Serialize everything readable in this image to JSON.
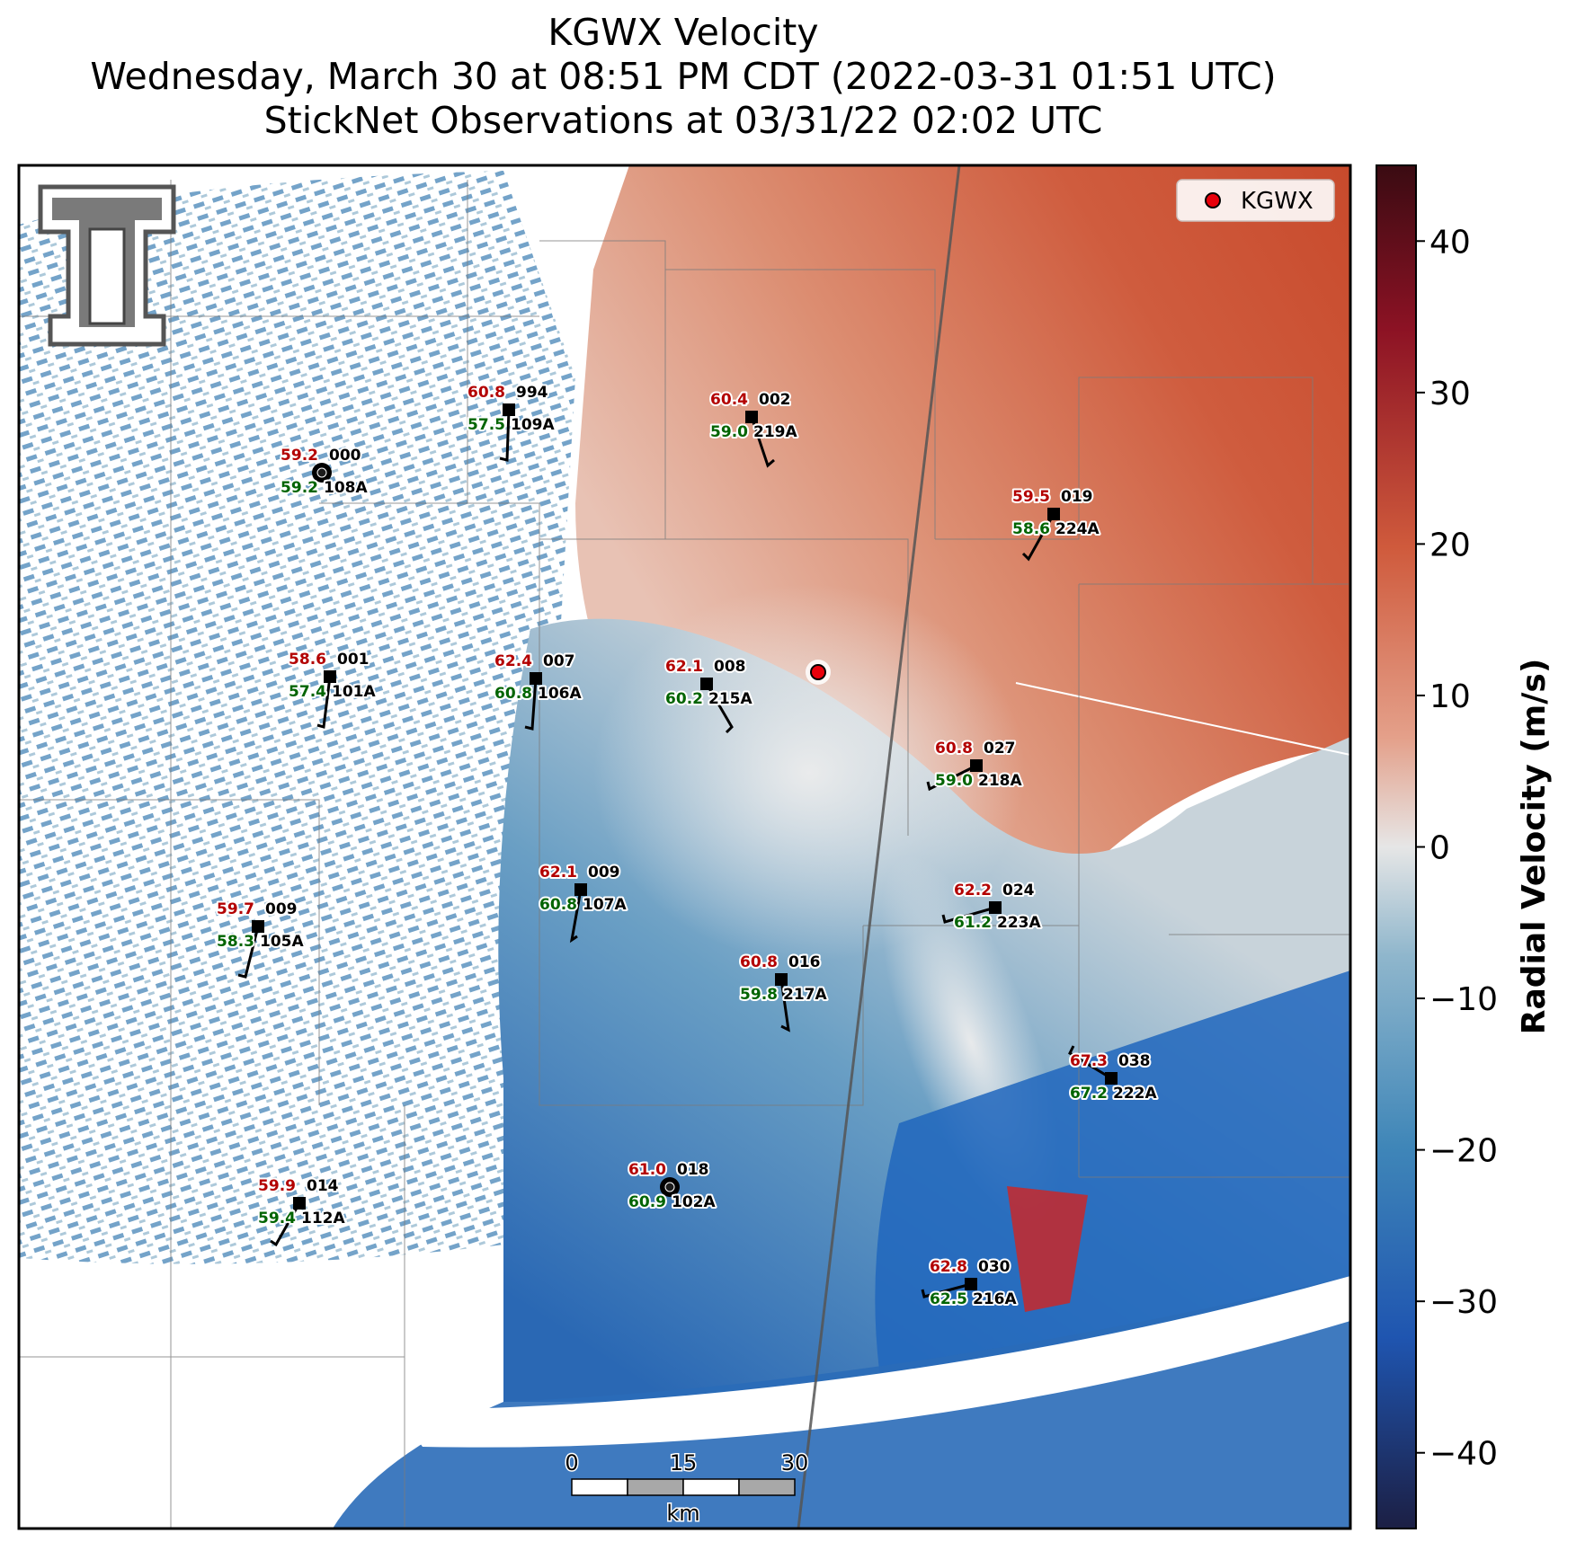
{
  "title": {
    "line1": "KGWX Velocity",
    "line2": "Wednesday, March 30 at 08:51 PM CDT (2022-03-31 01:51 UTC)",
    "line3": "StickNet Observations at 03/31/22 02:02 UTC"
  },
  "legend": {
    "label": "KGWX",
    "marker_color": "#e8000b"
  },
  "colorbar": {
    "label": "Radial Velocity (m/s)",
    "ticks": [
      "40",
      "30",
      "20",
      "10",
      "0",
      "−10",
      "−20",
      "−30",
      "−40"
    ],
    "min": -45,
    "max": 45,
    "colors": [
      "#1c1f44",
      "#2a3f9e",
      "#2f6fbf",
      "#5f9fc2",
      "#e6e6e6",
      "#e4a08a",
      "#cf5a3c",
      "#8c1224",
      "#3a0b12"
    ]
  },
  "scale_bar": {
    "ticks": [
      "0",
      "15",
      "30"
    ],
    "unit": "km"
  },
  "logo": {
    "name": "Texas Tech Double T"
  },
  "stations": [
    {
      "temp": "60.8",
      "id": "994",
      "dew": "57.5",
      "probe": "109A"
    },
    {
      "temp": "60.4",
      "id": "002",
      "dew": "59.0",
      "probe": "219A"
    },
    {
      "temp": "59.2",
      "id": "000",
      "dew": "59.2",
      "probe": "108A"
    },
    {
      "temp": "59.5",
      "id": "019",
      "dew": "58.6",
      "probe": "224A"
    },
    {
      "temp": "58.6",
      "id": "001",
      "dew": "57.4",
      "probe": "101A"
    },
    {
      "temp": "62.4",
      "id": "007",
      "dew": "60.8",
      "probe": "106A"
    },
    {
      "temp": "62.1",
      "id": "008",
      "dew": "60.2",
      "probe": "215A"
    },
    {
      "temp": "60.8",
      "id": "027",
      "dew": "59.0",
      "probe": "218A"
    },
    {
      "temp": "62.1",
      "id": "009",
      "dew": "60.8",
      "probe": "107A"
    },
    {
      "temp": "62.2",
      "id": "024",
      "dew": "61.2",
      "probe": "223A"
    },
    {
      "temp": "59.7",
      "id": "009",
      "dew": "58.3",
      "probe": "105A"
    },
    {
      "temp": "60.8",
      "id": "016",
      "dew": "59.8",
      "probe": "217A"
    },
    {
      "temp": "67.3",
      "id": "038",
      "dew": "67.2",
      "probe": "222A"
    },
    {
      "temp": "61.0",
      "id": "018",
      "dew": "60.9",
      "probe": "102A"
    },
    {
      "temp": "59.9",
      "id": "014",
      "dew": "59.4",
      "probe": "112A"
    },
    {
      "temp": "62.8",
      "id": "030",
      "dew": "62.5",
      "probe": "216A"
    }
  ]
}
